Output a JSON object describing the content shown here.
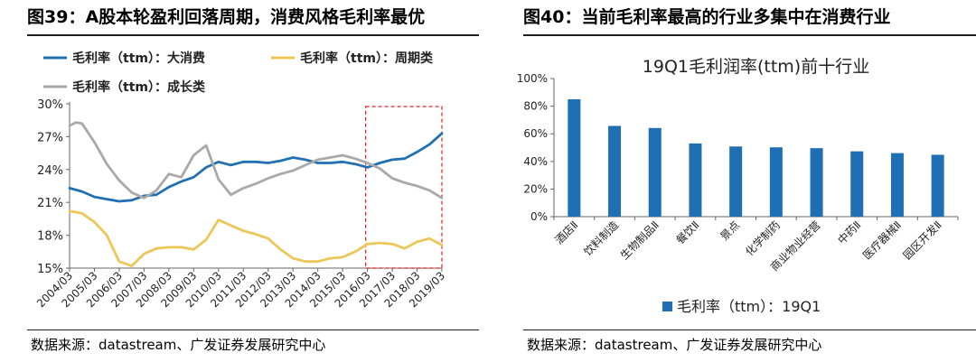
{
  "left": {
    "figure_title": "图39：A股本轮盈利回落周期，消费风格毛利率最优",
    "source": "数据来源：datastream、广发证券发展研究中心"
  },
  "right": {
    "figure_title": "图40：当前毛利率最高的行业多集中在消费行业",
    "source": "数据来源：datastream、广发证券发展研究中心"
  },
  "colors": {
    "blue": "#2170b3",
    "yellow": "#ecc758",
    "grey": "#a9a9a9",
    "bar": "#1f6fb4",
    "highlight_box": "#e02020"
  },
  "chart_data": [
    {
      "type": "line",
      "title": "",
      "xlabel": "",
      "ylabel": "",
      "x_ticks": [
        "2004/03",
        "2005/03",
        "2006/03",
        "2007/03",
        "2008/03",
        "2009/03",
        "2010/03",
        "2011/03",
        "2012/03",
        "2013/03",
        "2014/03",
        "2015/03",
        "2016/03",
        "2017/03",
        "2018/03",
        "2019/03"
      ],
      "y_ticks": [
        "15%",
        "18%",
        "21%",
        "24%",
        "27%",
        "30%"
      ],
      "ylim": [
        15,
        30
      ],
      "y_unit": "%",
      "grid": false,
      "legend_position": "top",
      "highlight_region": {
        "from": "2016/03",
        "to": "2019/03",
        "style": "red dashed box"
      },
      "series": [
        {
          "name": "毛利率（ttm）：大消费",
          "color_key": "blue",
          "points": [
            [
              "2004/03",
              22.3
            ],
            [
              "2004/09",
              22.0
            ],
            [
              "2005/03",
              21.5
            ],
            [
              "2005/09",
              21.3
            ],
            [
              "2006/03",
              21.1
            ],
            [
              "2006/09",
              21.2
            ],
            [
              "2007/03",
              21.6
            ],
            [
              "2007/09",
              21.7
            ],
            [
              "2008/03",
              22.4
            ],
            [
              "2008/09",
              22.9
            ],
            [
              "2009/03",
              23.3
            ],
            [
              "2009/09",
              24.2
            ],
            [
              "2010/03",
              24.7
            ],
            [
              "2010/09",
              24.4
            ],
            [
              "2011/03",
              24.7
            ],
            [
              "2011/09",
              24.7
            ],
            [
              "2012/03",
              24.6
            ],
            [
              "2012/09",
              24.8
            ],
            [
              "2013/03",
              25.1
            ],
            [
              "2013/09",
              24.9
            ],
            [
              "2014/03",
              24.6
            ],
            [
              "2014/09",
              24.6
            ],
            [
              "2015/03",
              24.7
            ],
            [
              "2015/09",
              24.5
            ],
            [
              "2016/03",
              24.2
            ],
            [
              "2016/09",
              24.6
            ],
            [
              "2017/03",
              24.9
            ],
            [
              "2017/09",
              25.0
            ],
            [
              "2018/03",
              25.6
            ],
            [
              "2018/09",
              26.3
            ],
            [
              "2019/03",
              27.3
            ]
          ]
        },
        {
          "name": "毛利率（ttm）：周期类",
          "color_key": "yellow",
          "points": [
            [
              "2004/03",
              20.2
            ],
            [
              "2004/09",
              20.0
            ],
            [
              "2005/03",
              19.2
            ],
            [
              "2005/09",
              18.0
            ],
            [
              "2006/03",
              15.6
            ],
            [
              "2006/09",
              15.2
            ],
            [
              "2007/03",
              16.3
            ],
            [
              "2007/09",
              16.8
            ],
            [
              "2008/03",
              16.9
            ],
            [
              "2008/09",
              16.9
            ],
            [
              "2009/03",
              16.7
            ],
            [
              "2009/09",
              17.6
            ],
            [
              "2010/03",
              19.4
            ],
            [
              "2010/09",
              18.9
            ],
            [
              "2011/03",
              18.4
            ],
            [
              "2011/09",
              18.1
            ],
            [
              "2012/03",
              17.7
            ],
            [
              "2012/09",
              16.7
            ],
            [
              "2013/03",
              15.9
            ],
            [
              "2013/09",
              15.6
            ],
            [
              "2014/03",
              15.6
            ],
            [
              "2014/09",
              15.9
            ],
            [
              "2015/03",
              16.0
            ],
            [
              "2015/09",
              16.5
            ],
            [
              "2016/03",
              17.2
            ],
            [
              "2016/09",
              17.3
            ],
            [
              "2017/03",
              17.2
            ],
            [
              "2017/09",
              16.8
            ],
            [
              "2018/03",
              17.4
            ],
            [
              "2018/09",
              17.7
            ],
            [
              "2019/03",
              17.1
            ]
          ]
        },
        {
          "name": "毛利率（ttm）：成长类",
          "color_key": "grey",
          "points": [
            [
              "2004/03",
              28.0
            ],
            [
              "2004/06",
              28.3
            ],
            [
              "2004/09",
              28.2
            ],
            [
              "2005/03",
              26.5
            ],
            [
              "2005/09",
              24.5
            ],
            [
              "2006/03",
              23.0
            ],
            [
              "2006/09",
              21.9
            ],
            [
              "2007/03",
              21.4
            ],
            [
              "2007/09",
              22.1
            ],
            [
              "2008/03",
              23.6
            ],
            [
              "2008/09",
              23.3
            ],
            [
              "2009/03",
              25.3
            ],
            [
              "2009/09",
              26.2
            ],
            [
              "2010/03",
              23.1
            ],
            [
              "2010/09",
              21.7
            ],
            [
              "2011/03",
              22.3
            ],
            [
              "2011/09",
              22.7
            ],
            [
              "2012/03",
              23.2
            ],
            [
              "2012/09",
              23.6
            ],
            [
              "2013/03",
              23.9
            ],
            [
              "2013/09",
              24.4
            ],
            [
              "2014/03",
              24.9
            ],
            [
              "2014/09",
              25.1
            ],
            [
              "2015/03",
              25.3
            ],
            [
              "2015/09",
              25.0
            ],
            [
              "2016/03",
              24.6
            ],
            [
              "2016/09",
              24.1
            ],
            [
              "2017/03",
              23.2
            ],
            [
              "2017/09",
              22.8
            ],
            [
              "2018/03",
              22.5
            ],
            [
              "2018/09",
              22.1
            ],
            [
              "2019/03",
              21.4
            ]
          ]
        }
      ]
    },
    {
      "type": "bar",
      "title": "19Q1毛利润率(ttm)前十行业",
      "xlabel": "",
      "ylabel": "",
      "categories": [
        "酒店Ⅱ",
        "饮料制造",
        "生物制品Ⅱ",
        "餐饮Ⅱ",
        "景点",
        "化学制药",
        "商业物业经营",
        "中药Ⅱ",
        "医疗器械Ⅱ",
        "园区开发Ⅱ"
      ],
      "y_ticks": [
        "0%",
        "20%",
        "40%",
        "60%",
        "80%",
        "100%"
      ],
      "ylim": [
        0,
        100
      ],
      "y_unit": "%",
      "grid": false,
      "legend_position": "bottom",
      "series": [
        {
          "name": "毛利率（ttm）：19Q1",
          "color_key": "bar",
          "values": [
            85.0,
            65.7,
            64.2,
            53.0,
            50.8,
            50.2,
            49.6,
            47.3,
            46.0,
            44.8
          ]
        }
      ]
    }
  ]
}
